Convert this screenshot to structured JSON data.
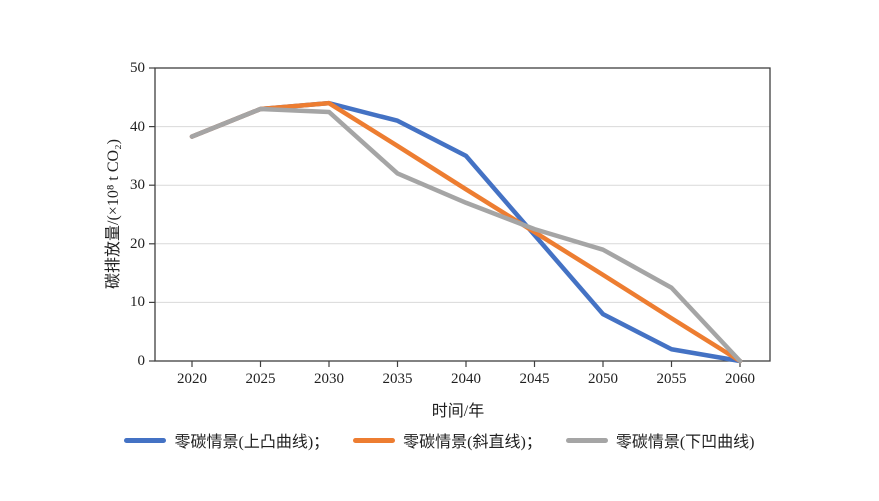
{
  "figure": {
    "background": "#ffffff",
    "plot_border_color": "#3f3f3f",
    "grid_color": "#d9d9d9",
    "text_color": "#1f1f1f"
  },
  "chart_data": {
    "type": "line",
    "title": "",
    "xlabel": "时间/年",
    "ylabel": "碳排放量/(×10⁸ t CO₂)",
    "categories": [
      2020,
      2025,
      2030,
      2035,
      2040,
      2045,
      2050,
      2055,
      2060
    ],
    "ylim": [
      0,
      50
    ],
    "yticks": [
      0,
      10,
      20,
      30,
      40,
      50
    ],
    "grid": "horizontal",
    "legend_position": "bottom",
    "series": [
      {
        "name": "零碳情景(上凸曲线)",
        "legend_label": "零碳情景(上凸曲线)；",
        "color": "#4472C4",
        "values": [
          38.3,
          43,
          44,
          41,
          35,
          21.5,
          8,
          2,
          0
        ]
      },
      {
        "name": "零碳情景(斜直线)",
        "legend_label": "零碳情景(斜直线)；",
        "color": "#ED7D31",
        "values": [
          38.3,
          43,
          44,
          36.7,
          29.3,
          22,
          14.7,
          7.3,
          0
        ]
      },
      {
        "name": "零碳情景(下凹曲线)",
        "legend_label": "零碳情景(下凹曲线)",
        "color": "#A5A5A5",
        "values": [
          38.3,
          43,
          42.5,
          32,
          27,
          22.5,
          19,
          12.5,
          0
        ]
      }
    ]
  }
}
